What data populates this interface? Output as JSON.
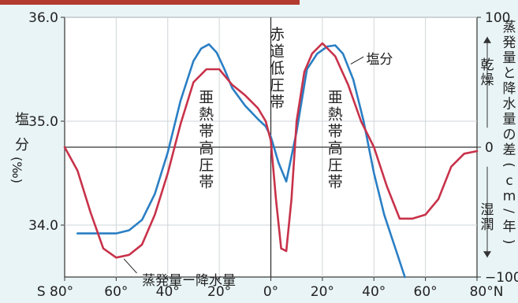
{
  "chart_data": {
    "type": "line",
    "x_ticks": [
      {
        "value": -80,
        "label": "S 80°"
      },
      {
        "value": -60,
        "label": "60°"
      },
      {
        "value": -40,
        "label": "40°"
      },
      {
        "value": -20,
        "label": "20°"
      },
      {
        "value": 0,
        "label": "0°"
      },
      {
        "value": 20,
        "label": "20°"
      },
      {
        "value": 40,
        "label": "40°"
      },
      {
        "value": 60,
        "label": "60°"
      },
      {
        "value": 80,
        "label": "80°N"
      }
    ],
    "y_left": {
      "label_chars": [
        "塩",
        "分",
        "(‰)"
      ],
      "ticks": [
        {
          "value": 34.0,
          "label": "34.0"
        },
        {
          "value": 35.0,
          "label": "35.0"
        },
        {
          "value": 36.0,
          "label": "36.0"
        }
      ],
      "range": [
        33.5,
        36.0
      ]
    },
    "y_right": {
      "label": "蒸発量と降水量の差(cm/年)",
      "ticks": [
        {
          "value": 100,
          "label": "100"
        },
        {
          "value": 0,
          "label": "0"
        },
        {
          "value": -100,
          "label": "−100"
        }
      ],
      "range": [
        -100,
        100
      ],
      "up_label": "乾燥",
      "down_label": "湿潤"
    },
    "zones": [
      {
        "lat": -25,
        "label": "亜熱帯高圧帯"
      },
      {
        "lat": 0,
        "label": "赤道低圧帯"
      },
      {
        "lat": 25,
        "label": "亜熱帯高圧帯"
      }
    ],
    "series": [
      {
        "name": "塩分",
        "axis": "left",
        "color": "#2a7fc4",
        "x": [
          -75,
          -68,
          -60,
          -55,
          -50,
          -45,
          -40,
          -35,
          -30,
          -27,
          -24,
          -21,
          -18,
          -15,
          -10,
          -5,
          -2,
          0,
          3,
          6,
          10,
          14,
          18,
          22,
          25,
          28,
          32,
          36,
          40,
          44,
          48,
          52
        ],
        "y": [
          33.92,
          33.92,
          33.92,
          33.95,
          34.05,
          34.3,
          34.7,
          35.2,
          35.58,
          35.7,
          35.74,
          35.66,
          35.5,
          35.32,
          35.15,
          35.02,
          34.95,
          34.85,
          34.6,
          34.42,
          34.9,
          35.5,
          35.65,
          35.72,
          35.73,
          35.65,
          35.4,
          35.0,
          34.5,
          34.1,
          33.8,
          33.5
        ]
      },
      {
        "name": "蒸発量ー降水量",
        "axis": "right",
        "color": "#c8324a",
        "x": [
          -80,
          -75,
          -70,
          -65,
          -60,
          -55,
          -50,
          -45,
          -40,
          -35,
          -30,
          -25,
          -20,
          -15,
          -10,
          -5,
          -2,
          0,
          2,
          4,
          6,
          8,
          10,
          13,
          16,
          20,
          25,
          30,
          35,
          40,
          45,
          50,
          55,
          60,
          65,
          70,
          75,
          80
        ],
        "y": [
          0,
          -18,
          -50,
          -78,
          -85,
          -83,
          -75,
          -52,
          -20,
          18,
          50,
          60,
          60,
          48,
          40,
          30,
          20,
          5,
          -40,
          -78,
          -80,
          -40,
          20,
          58,
          72,
          80,
          70,
          48,
          20,
          0,
          -30,
          -55,
          -55,
          -52,
          -40,
          -15,
          -5,
          -3
        ]
      }
    ]
  }
}
